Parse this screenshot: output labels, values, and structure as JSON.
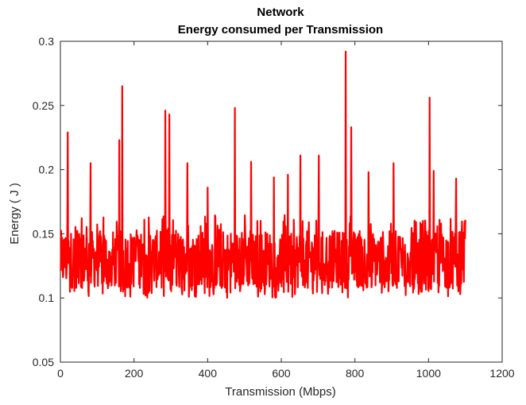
{
  "chart_data": {
    "type": "line",
    "title": [
      "Network",
      "Energy consumed per Transmission"
    ],
    "xlabel": "Transmission (Mbps)",
    "ylabel": "Energy ( J )",
    "xlim": [
      0,
      1200
    ],
    "ylim": [
      0.05,
      0.3
    ],
    "xticks": [
      0,
      200,
      400,
      600,
      800,
      1000,
      1200
    ],
    "yticks": [
      0.05,
      0.1,
      0.15,
      0.2,
      0.25,
      0.3
    ],
    "xtick_labels": [
      "0",
      "200",
      "400",
      "600",
      "800",
      "1000",
      "1200"
    ],
    "ytick_labels": [
      "0.05",
      "0.1",
      "0.15",
      "0.2",
      "0.25",
      "0.3"
    ],
    "grid": false,
    "line_color": "#ff0000",
    "series": [
      {
        "x_start": 1,
        "x_end": 1100,
        "baseline_range": [
          0.1,
          0.165
        ],
        "typical_value": 0.13,
        "peaks": [
          {
            "x": 20,
            "y": 0.229
          },
          {
            "x": 82,
            "y": 0.205
          },
          {
            "x": 160,
            "y": 0.223
          },
          {
            "x": 168,
            "y": 0.265
          },
          {
            "x": 285,
            "y": 0.246
          },
          {
            "x": 296,
            "y": 0.243
          },
          {
            "x": 345,
            "y": 0.205
          },
          {
            "x": 400,
            "y": 0.186
          },
          {
            "x": 474,
            "y": 0.248
          },
          {
            "x": 518,
            "y": 0.206
          },
          {
            "x": 580,
            "y": 0.194
          },
          {
            "x": 618,
            "y": 0.196
          },
          {
            "x": 652,
            "y": 0.211
          },
          {
            "x": 702,
            "y": 0.211
          },
          {
            "x": 775,
            "y": 0.292
          },
          {
            "x": 790,
            "y": 0.233
          },
          {
            "x": 837,
            "y": 0.198
          },
          {
            "x": 905,
            "y": 0.205
          },
          {
            "x": 1003,
            "y": 0.256
          },
          {
            "x": 1014,
            "y": 0.199
          },
          {
            "x": 1075,
            "y": 0.193
          }
        ]
      }
    ]
  }
}
